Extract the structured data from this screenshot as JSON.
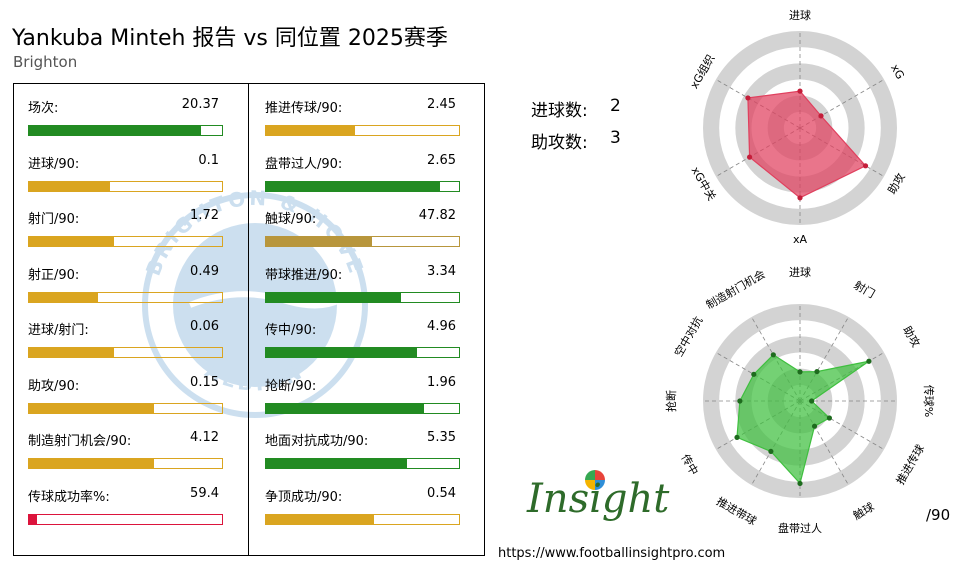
{
  "header": {
    "title": "Yankuba Minteh 报告 vs 同位置 2025赛季",
    "subtitle": "Brighton"
  },
  "watermark": {
    "top_text": "BRIGHTON & HOVE",
    "bottom_text": "ALBION"
  },
  "summary": {
    "goals_label": "进球数:",
    "goals_value": "2",
    "assists_label": "助攻数:",
    "assists_value": "3"
  },
  "colors": {
    "good": "#228b22",
    "mid": "#daa520",
    "bad": "#dc143c",
    "touches_fill": "#b8963c"
  },
  "stats_left": [
    {
      "label": "场次:",
      "value": "20.37",
      "fill": 0.89,
      "color": "good"
    },
    {
      "label": "进球/90:",
      "value": "0.1",
      "fill": 0.42,
      "color": "mid"
    },
    {
      "label": "射门/90:",
      "value": "1.72",
      "fill": 0.44,
      "color": "mid"
    },
    {
      "label": "射正/90:",
      "value": "0.49",
      "fill": 0.36,
      "color": "mid"
    },
    {
      "label": "进球/射门:",
      "value": "0.06",
      "fill": 0.44,
      "color": "mid"
    },
    {
      "label": "助攻/90:",
      "value": "0.15",
      "fill": 0.65,
      "color": "mid"
    },
    {
      "label": "制造射门机会/90:",
      "value": "4.12",
      "fill": 0.65,
      "color": "mid"
    },
    {
      "label": "传球成功率%:",
      "value": "59.4",
      "fill": 0.04,
      "color": "bad"
    }
  ],
  "stats_right": [
    {
      "label": "推进传球/90:",
      "value": "2.45",
      "fill": 0.46,
      "color": "mid"
    },
    {
      "label": "盘带过人/90:",
      "value": "2.65",
      "fill": 0.9,
      "color": "good"
    },
    {
      "label": "触球/90:",
      "value": "47.82",
      "fill": 0.55,
      "color": "touches_fill"
    },
    {
      "label": "带球推进/90:",
      "value": "3.34",
      "fill": 0.7,
      "color": "good"
    },
    {
      "label": "传中/90:",
      "value": "4.96",
      "fill": 0.78,
      "color": "good"
    },
    {
      "label": "抢断/90:",
      "value": "1.96",
      "fill": 0.82,
      "color": "good"
    },
    {
      "label": "地面对抗成功/90:",
      "value": "5.35",
      "fill": 0.73,
      "color": "good"
    },
    {
      "label": "争顶成功/90:",
      "value": "0.54",
      "fill": 0.56,
      "color": "mid"
    }
  ],
  "chart_data": [
    {
      "type": "radar",
      "axes": [
        "进球",
        "xG",
        "助攻",
        "xA",
        "xG中关",
        "xG组织"
      ],
      "values": [
        0.38,
        0.25,
        0.78,
        0.72,
        0.6,
        0.62
      ],
      "color": "#e0405e",
      "rings": 3
    },
    {
      "type": "radar",
      "axes": [
        "进球",
        "射门",
        "助攻",
        "传球%",
        "推进传球",
        "触球",
        "盘带过人",
        "推进带球",
        "传中",
        "抢断",
        "空中对抗",
        "制造射门机会"
      ],
      "values": [
        0.3,
        0.35,
        0.82,
        0.12,
        0.35,
        0.3,
        0.85,
        0.6,
        0.75,
        0.62,
        0.55,
        0.55
      ],
      "color": "#3fbf3f",
      "rings": 3,
      "unit_label": "/90"
    }
  ],
  "logo": {
    "text": "Insight"
  },
  "footer": {
    "url": "https://www.footballinsightpro.com"
  }
}
